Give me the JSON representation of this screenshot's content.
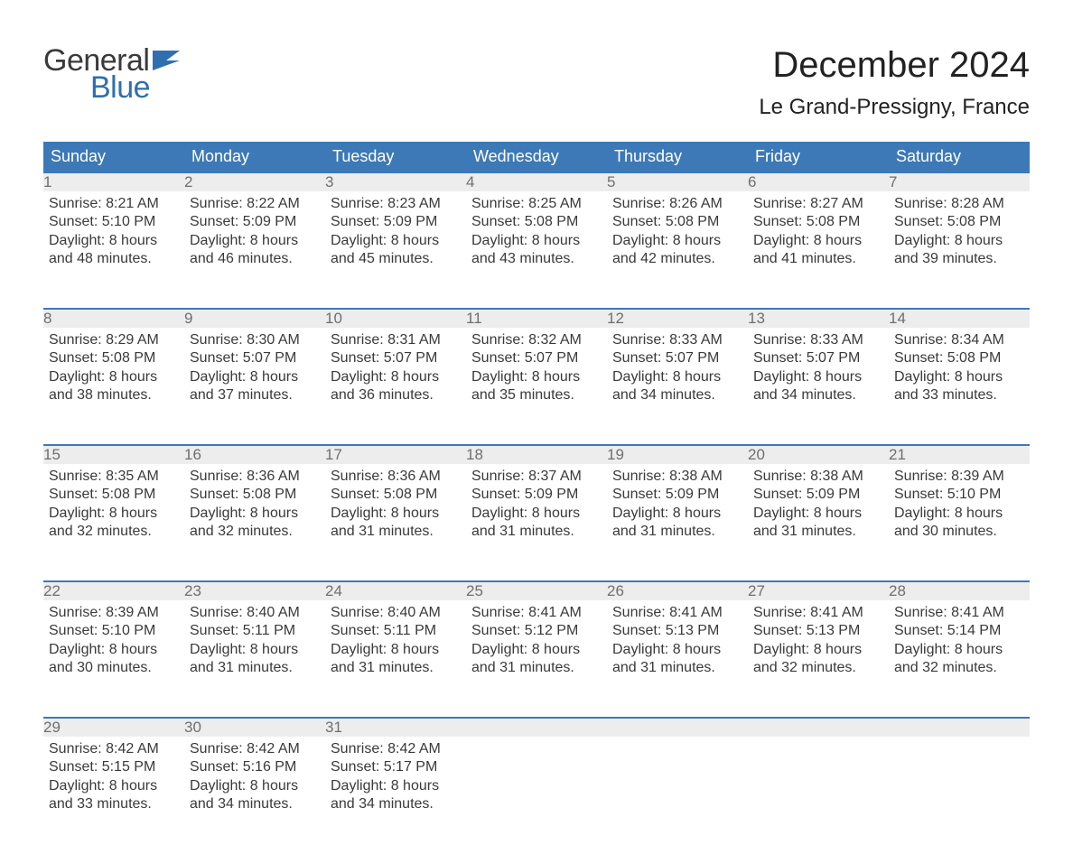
{
  "logo": {
    "text_general": "General",
    "text_blue": "Blue",
    "flag_color": "#2f6fb0"
  },
  "header": {
    "month_title": "December 2024",
    "location": "Le Grand-Pressigny, France"
  },
  "colors": {
    "header_bg": "#3d79b6",
    "header_text": "#ffffff",
    "daynum_bg": "#ededed",
    "row_border": "#3d79b6",
    "body_text": "#3a3a3a",
    "daynum_text": "#6f6f6f",
    "logo_blue": "#2f6fb0",
    "page_bg": "#ffffff"
  },
  "typography": {
    "month_title_fontsize": 40,
    "location_fontsize": 24,
    "weekday_fontsize": 18,
    "daynum_fontsize": 17,
    "daycontent_fontsize": 16,
    "logo_fontsize": 34
  },
  "calendar": {
    "weekdays": [
      "Sunday",
      "Monday",
      "Tuesday",
      "Wednesday",
      "Thursday",
      "Friday",
      "Saturday"
    ],
    "weeks": [
      [
        {
          "num": "1",
          "sunrise": "Sunrise: 8:21 AM",
          "sunset": "Sunset: 5:10 PM",
          "dl1": "Daylight: 8 hours",
          "dl2": "and 48 minutes."
        },
        {
          "num": "2",
          "sunrise": "Sunrise: 8:22 AM",
          "sunset": "Sunset: 5:09 PM",
          "dl1": "Daylight: 8 hours",
          "dl2": "and 46 minutes."
        },
        {
          "num": "3",
          "sunrise": "Sunrise: 8:23 AM",
          "sunset": "Sunset: 5:09 PM",
          "dl1": "Daylight: 8 hours",
          "dl2": "and 45 minutes."
        },
        {
          "num": "4",
          "sunrise": "Sunrise: 8:25 AM",
          "sunset": "Sunset: 5:08 PM",
          "dl1": "Daylight: 8 hours",
          "dl2": "and 43 minutes."
        },
        {
          "num": "5",
          "sunrise": "Sunrise: 8:26 AM",
          "sunset": "Sunset: 5:08 PM",
          "dl1": "Daylight: 8 hours",
          "dl2": "and 42 minutes."
        },
        {
          "num": "6",
          "sunrise": "Sunrise: 8:27 AM",
          "sunset": "Sunset: 5:08 PM",
          "dl1": "Daylight: 8 hours",
          "dl2": "and 41 minutes."
        },
        {
          "num": "7",
          "sunrise": "Sunrise: 8:28 AM",
          "sunset": "Sunset: 5:08 PM",
          "dl1": "Daylight: 8 hours",
          "dl2": "and 39 minutes."
        }
      ],
      [
        {
          "num": "8",
          "sunrise": "Sunrise: 8:29 AM",
          "sunset": "Sunset: 5:08 PM",
          "dl1": "Daylight: 8 hours",
          "dl2": "and 38 minutes."
        },
        {
          "num": "9",
          "sunrise": "Sunrise: 8:30 AM",
          "sunset": "Sunset: 5:07 PM",
          "dl1": "Daylight: 8 hours",
          "dl2": "and 37 minutes."
        },
        {
          "num": "10",
          "sunrise": "Sunrise: 8:31 AM",
          "sunset": "Sunset: 5:07 PM",
          "dl1": "Daylight: 8 hours",
          "dl2": "and 36 minutes."
        },
        {
          "num": "11",
          "sunrise": "Sunrise: 8:32 AM",
          "sunset": "Sunset: 5:07 PM",
          "dl1": "Daylight: 8 hours",
          "dl2": "and 35 minutes."
        },
        {
          "num": "12",
          "sunrise": "Sunrise: 8:33 AM",
          "sunset": "Sunset: 5:07 PM",
          "dl1": "Daylight: 8 hours",
          "dl2": "and 34 minutes."
        },
        {
          "num": "13",
          "sunrise": "Sunrise: 8:33 AM",
          "sunset": "Sunset: 5:07 PM",
          "dl1": "Daylight: 8 hours",
          "dl2": "and 34 minutes."
        },
        {
          "num": "14",
          "sunrise": "Sunrise: 8:34 AM",
          "sunset": "Sunset: 5:08 PM",
          "dl1": "Daylight: 8 hours",
          "dl2": "and 33 minutes."
        }
      ],
      [
        {
          "num": "15",
          "sunrise": "Sunrise: 8:35 AM",
          "sunset": "Sunset: 5:08 PM",
          "dl1": "Daylight: 8 hours",
          "dl2": "and 32 minutes."
        },
        {
          "num": "16",
          "sunrise": "Sunrise: 8:36 AM",
          "sunset": "Sunset: 5:08 PM",
          "dl1": "Daylight: 8 hours",
          "dl2": "and 32 minutes."
        },
        {
          "num": "17",
          "sunrise": "Sunrise: 8:36 AM",
          "sunset": "Sunset: 5:08 PM",
          "dl1": "Daylight: 8 hours",
          "dl2": "and 31 minutes."
        },
        {
          "num": "18",
          "sunrise": "Sunrise: 8:37 AM",
          "sunset": "Sunset: 5:09 PM",
          "dl1": "Daylight: 8 hours",
          "dl2": "and 31 minutes."
        },
        {
          "num": "19",
          "sunrise": "Sunrise: 8:38 AM",
          "sunset": "Sunset: 5:09 PM",
          "dl1": "Daylight: 8 hours",
          "dl2": "and 31 minutes."
        },
        {
          "num": "20",
          "sunrise": "Sunrise: 8:38 AM",
          "sunset": "Sunset: 5:09 PM",
          "dl1": "Daylight: 8 hours",
          "dl2": "and 31 minutes."
        },
        {
          "num": "21",
          "sunrise": "Sunrise: 8:39 AM",
          "sunset": "Sunset: 5:10 PM",
          "dl1": "Daylight: 8 hours",
          "dl2": "and 30 minutes."
        }
      ],
      [
        {
          "num": "22",
          "sunrise": "Sunrise: 8:39 AM",
          "sunset": "Sunset: 5:10 PM",
          "dl1": "Daylight: 8 hours",
          "dl2": "and 30 minutes."
        },
        {
          "num": "23",
          "sunrise": "Sunrise: 8:40 AM",
          "sunset": "Sunset: 5:11 PM",
          "dl1": "Daylight: 8 hours",
          "dl2": "and 31 minutes."
        },
        {
          "num": "24",
          "sunrise": "Sunrise: 8:40 AM",
          "sunset": "Sunset: 5:11 PM",
          "dl1": "Daylight: 8 hours",
          "dl2": "and 31 minutes."
        },
        {
          "num": "25",
          "sunrise": "Sunrise: 8:41 AM",
          "sunset": "Sunset: 5:12 PM",
          "dl1": "Daylight: 8 hours",
          "dl2": "and 31 minutes."
        },
        {
          "num": "26",
          "sunrise": "Sunrise: 8:41 AM",
          "sunset": "Sunset: 5:13 PM",
          "dl1": "Daylight: 8 hours",
          "dl2": "and 31 minutes."
        },
        {
          "num": "27",
          "sunrise": "Sunrise: 8:41 AM",
          "sunset": "Sunset: 5:13 PM",
          "dl1": "Daylight: 8 hours",
          "dl2": "and 32 minutes."
        },
        {
          "num": "28",
          "sunrise": "Sunrise: 8:41 AM",
          "sunset": "Sunset: 5:14 PM",
          "dl1": "Daylight: 8 hours",
          "dl2": "and 32 minutes."
        }
      ],
      [
        {
          "num": "29",
          "sunrise": "Sunrise: 8:42 AM",
          "sunset": "Sunset: 5:15 PM",
          "dl1": "Daylight: 8 hours",
          "dl2": "and 33 minutes."
        },
        {
          "num": "30",
          "sunrise": "Sunrise: 8:42 AM",
          "sunset": "Sunset: 5:16 PM",
          "dl1": "Daylight: 8 hours",
          "dl2": "and 34 minutes."
        },
        {
          "num": "31",
          "sunrise": "Sunrise: 8:42 AM",
          "sunset": "Sunset: 5:17 PM",
          "dl1": "Daylight: 8 hours",
          "dl2": "and 34 minutes."
        },
        null,
        null,
        null,
        null
      ]
    ]
  }
}
